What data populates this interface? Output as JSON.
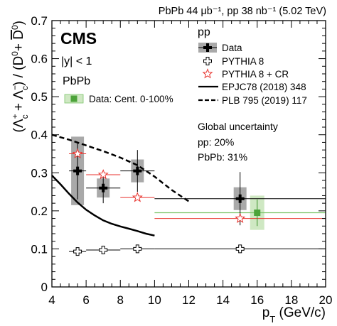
{
  "chart_data": {
    "type": "scatter",
    "header": "PbPb 44 μb⁻¹, pp 38 nb⁻¹ (5.02 TeV)",
    "experiment": "CMS",
    "rapidity": "|y| < 1",
    "xlabel": "p_T (GeV/c)",
    "ylabel": "(Λ_c⁺ + Λ_c⁻) / (D⁰ + D̅⁰)",
    "xlim": [
      4,
      20
    ],
    "ylim": [
      0,
      0.7
    ],
    "xticks": [
      "4",
      "6",
      "8",
      "10",
      "12",
      "14",
      "16",
      "18",
      "20"
    ],
    "yticks": [
      "0",
      "0.1",
      "0.2",
      "0.3",
      "0.4",
      "0.5",
      "0.6",
      "0.7"
    ],
    "grid": false,
    "legend_pp": {
      "title": "pp",
      "items": [
        "Data",
        "PYTHIA 8",
        "PYTHIA 8 + CR",
        "EPJC78 (2018) 348",
        "PLB 795 (2019) 117"
      ]
    },
    "legend_pbpb": {
      "title": "PbPb",
      "items": [
        "Data: Cent. 0-100%"
      ]
    },
    "annotation": {
      "title": "Global uncertainty",
      "lines": [
        "pp: 20%",
        "PbPb: 31%"
      ]
    },
    "series": [
      {
        "name": "Data",
        "marker": "black-cross",
        "color": "#000000",
        "points": [
          {
            "x": 5.5,
            "y": 0.305,
            "xlo": 5,
            "xhi": 6,
            "stat": 0.075,
            "syst": 0.09
          },
          {
            "x": 7,
            "y": 0.26,
            "xlo": 6,
            "xhi": 8,
            "stat": 0.04,
            "syst": 0.025
          },
          {
            "x": 9,
            "y": 0.305,
            "xlo": 8,
            "xhi": 10,
            "stat": 0.055,
            "syst": 0.03
          },
          {
            "x": 15,
            "y": 0.232,
            "xlo": 10,
            "xhi": 20,
            "stat": 0.07,
            "syst": 0.03
          }
        ]
      },
      {
        "name": "Data: Cent. 0-100%",
        "marker": "green-square",
        "color": "#4ca33a",
        "points": [
          {
            "x": 16,
            "y": 0.195,
            "xlo": 10,
            "xhi": 20,
            "stat": 0.035,
            "syst": 0.045
          }
        ]
      },
      {
        "name": "PYTHIA 8",
        "marker": "open-cross",
        "color": "#000000",
        "points": [
          {
            "x": 5.5,
            "y": 0.093,
            "xlo": 5,
            "xhi": 6
          },
          {
            "x": 7,
            "y": 0.097,
            "xlo": 6,
            "xhi": 8
          },
          {
            "x": 9,
            "y": 0.1,
            "xlo": 8,
            "xhi": 10
          },
          {
            "x": 15,
            "y": 0.1,
            "xlo": 10,
            "xhi": 20
          }
        ]
      },
      {
        "name": "PYTHIA 8 + CR",
        "marker": "open-star",
        "color": "#e8322c",
        "points": [
          {
            "x": 5.5,
            "y": 0.35,
            "xlo": 5,
            "xhi": 6
          },
          {
            "x": 7,
            "y": 0.295,
            "xlo": 6,
            "xhi": 8
          },
          {
            "x": 9,
            "y": 0.235,
            "xlo": 8,
            "xhi": 10
          },
          {
            "x": 15,
            "y": 0.18,
            "xlo": 10,
            "xhi": 20
          }
        ]
      },
      {
        "name": "EPJC78 (2018) 348",
        "style": "solid-line",
        "color": "#000000",
        "x": [
          4,
          4.5,
          5,
          5.5,
          6,
          6.5,
          7,
          7.5,
          8,
          8.5,
          9,
          9.5,
          10
        ],
        "y": [
          0.293,
          0.27,
          0.245,
          0.222,
          0.203,
          0.188,
          0.175,
          0.166,
          0.159,
          0.153,
          0.147,
          0.14,
          0.135
        ]
      },
      {
        "name": "PLB 795 (2019) 117",
        "style": "dashed-line",
        "color": "#000000",
        "x": [
          4,
          5,
          6,
          7,
          8,
          9,
          10,
          11,
          12
        ],
        "y": [
          0.4,
          0.387,
          0.372,
          0.357,
          0.34,
          0.32,
          0.29,
          0.255,
          0.225
        ]
      }
    ]
  }
}
